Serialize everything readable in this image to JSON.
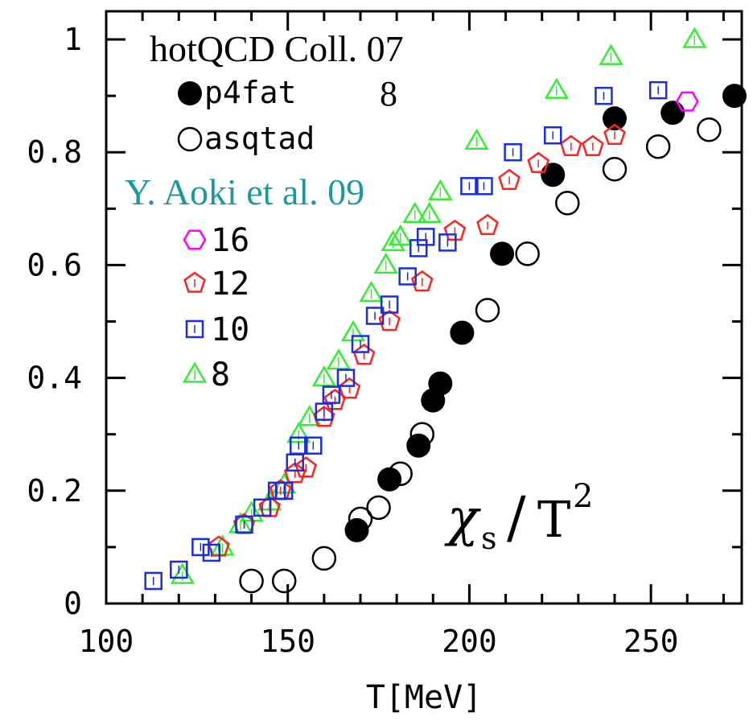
{
  "chart_data": {
    "type": "scatter",
    "title": "",
    "annotation": {
      "symbol": "χ",
      "subscript": "s",
      "slash": "/",
      "base": "T",
      "exponent": "2"
    },
    "xlabel": "T[MeV]",
    "ylabel": "",
    "xlim": [
      100,
      275
    ],
    "ylim": [
      0,
      1.05
    ],
    "x_ticks": [
      "100",
      "150",
      "200",
      "250"
    ],
    "y_ticks": [
      "0",
      "0.2",
      "0.4",
      "0.6",
      "0.8",
      "1"
    ],
    "grid": false,
    "legend_groups": [
      {
        "heading": "hotQCD Coll. 07",
        "heading_color": "#000000",
        "note": "8",
        "entries": [
          "p4fat",
          "asqtad"
        ]
      },
      {
        "heading": "Y. Aoki et al. 09",
        "heading_color": "#1a9a9a",
        "entries": [
          "16",
          "12",
          "10",
          "8"
        ]
      }
    ],
    "series": [
      {
        "name": "p4fat",
        "marker": "filled-circle",
        "color": "#000000",
        "points": [
          [
            169,
            0.13
          ],
          [
            178,
            0.22
          ],
          [
            186,
            0.28
          ],
          [
            190,
            0.36
          ],
          [
            192,
            0.39
          ],
          [
            198,
            0.48
          ],
          [
            209,
            0.62
          ],
          [
            223,
            0.76
          ],
          [
            240,
            0.86
          ],
          [
            256,
            0.87
          ],
          [
            273,
            0.9
          ]
        ]
      },
      {
        "name": "asqtad",
        "marker": "open-circle",
        "color": "#000000",
        "points": [
          [
            140,
            0.04
          ],
          [
            149,
            0.04
          ],
          [
            160,
            0.08
          ],
          [
            170,
            0.15
          ],
          [
            175,
            0.17
          ],
          [
            181,
            0.23
          ],
          [
            187,
            0.3
          ],
          [
            205,
            0.52
          ],
          [
            216,
            0.62
          ],
          [
            227,
            0.71
          ],
          [
            240,
            0.77
          ],
          [
            252,
            0.81
          ],
          [
            266,
            0.84
          ]
        ]
      },
      {
        "name": "16",
        "marker": "hexagon",
        "color": "#ff00ff",
        "points": [
          [
            260,
            0.89
          ]
        ]
      },
      {
        "name": "12",
        "marker": "pentagon",
        "color": "#ff2222",
        "points": [
          [
            131,
            0.1
          ],
          [
            138,
            0.14
          ],
          [
            145,
            0.17
          ],
          [
            148,
            0.2
          ],
          [
            152,
            0.23
          ],
          [
            155,
            0.24
          ],
          [
            160,
            0.33
          ],
          [
            163,
            0.36
          ],
          [
            167,
            0.38
          ],
          [
            171,
            0.44
          ],
          [
            178,
            0.5
          ],
          [
            187,
            0.57
          ],
          [
            196,
            0.66
          ],
          [
            205,
            0.67
          ],
          [
            211,
            0.75
          ],
          [
            219,
            0.78
          ],
          [
            228,
            0.81
          ],
          [
            234,
            0.81
          ],
          [
            240,
            0.83
          ]
        ]
      },
      {
        "name": "10",
        "marker": "open-square",
        "color": "#1a2ee0",
        "points": [
          [
            113,
            0.04
          ],
          [
            120,
            0.06
          ],
          [
            126,
            0.1
          ],
          [
            129,
            0.09
          ],
          [
            138,
            0.14
          ],
          [
            143,
            0.17
          ],
          [
            147,
            0.2
          ],
          [
            149,
            0.2
          ],
          [
            152,
            0.25
          ],
          [
            153,
            0.28
          ],
          [
            157,
            0.28
          ],
          [
            160,
            0.34
          ],
          [
            162,
            0.37
          ],
          [
            166,
            0.4
          ],
          [
            170,
            0.46
          ],
          [
            174,
            0.51
          ],
          [
            178,
            0.53
          ],
          [
            183,
            0.58
          ],
          [
            186,
            0.63
          ],
          [
            188,
            0.65
          ],
          [
            194,
            0.64
          ],
          [
            200,
            0.74
          ],
          [
            204,
            0.74
          ],
          [
            212,
            0.8
          ],
          [
            223,
            0.83
          ],
          [
            237,
            0.9
          ],
          [
            252,
            0.91
          ]
        ]
      },
      {
        "name": "8",
        "marker": "triangle",
        "color": "#33ee33",
        "points": [
          [
            121,
            0.05
          ],
          [
            132,
            0.1
          ],
          [
            137,
            0.14
          ],
          [
            140,
            0.16
          ],
          [
            145,
            0.18
          ],
          [
            149,
            0.21
          ],
          [
            153,
            0.3
          ],
          [
            156,
            0.33
          ],
          [
            160,
            0.4
          ],
          [
            164,
            0.43
          ],
          [
            168,
            0.48
          ],
          [
            173,
            0.55
          ],
          [
            177,
            0.6
          ],
          [
            179,
            0.64
          ],
          [
            181,
            0.65
          ],
          [
            185,
            0.69
          ],
          [
            189,
            0.69
          ],
          [
            192,
            0.73
          ],
          [
            202,
            0.82
          ],
          [
            224,
            0.91
          ],
          [
            239,
            0.97
          ],
          [
            262,
            1.0
          ]
        ]
      }
    ]
  }
}
